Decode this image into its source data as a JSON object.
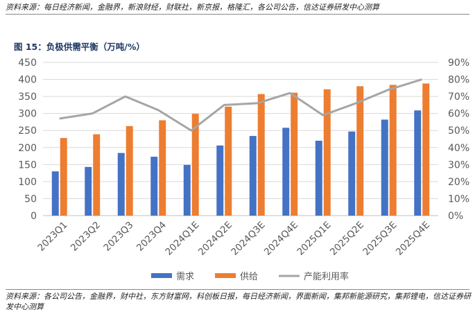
{
  "header": {
    "source_top": "资料来源：每日经济新闻，金融界，新浪财经，财联社，新京报，格隆汇，各公司公告，信达证券研发中心测算",
    "figure_title": "图 15：负极供需平衡（万吨/%）"
  },
  "footer": {
    "source_bottom": "资料来源：各公司公告，金融界，财中社，东方财富网，科创板日报，每日经济新闻，界面新闻，集邦新能源研究，集邦锂电，信达证券研发中心测算"
  },
  "chart_data": {
    "type": "bar",
    "categories": [
      "2023Q1",
      "2023Q2",
      "2023Q3",
      "2023Q4",
      "2024Q1E",
      "2024Q2E",
      "2024Q3E",
      "2024Q4E",
      "2025Q1E",
      "2025Q2E",
      "2025Q3E",
      "2025Q4E"
    ],
    "series": [
      {
        "name": "需求",
        "type": "bar",
        "axis": "left",
        "color": "#4472c4",
        "values": [
          130,
          143,
          184,
          173,
          149,
          206,
          234,
          258,
          220,
          247,
          282,
          309
        ]
      },
      {
        "name": "供给",
        "type": "bar",
        "axis": "left",
        "color": "#ed7d31",
        "values": [
          228,
          239,
          263,
          280,
          299,
          320,
          357,
          361,
          371,
          380,
          384,
          388
        ]
      },
      {
        "name": "产能利用率",
        "type": "line",
        "axis": "right",
        "color": "#a5a5a5",
        "values": [
          57,
          60,
          70,
          62,
          50,
          65,
          66,
          72,
          59,
          66,
          74,
          80
        ]
      }
    ],
    "left_axis": {
      "min": 0,
      "max": 450,
      "step": 50,
      "ticks": [
        "0",
        "50",
        "100",
        "150",
        "200",
        "250",
        "300",
        "350",
        "400",
        "450"
      ]
    },
    "right_axis": {
      "min": 0,
      "max": 90,
      "step": 10,
      "ticks": [
        "0%",
        "10%",
        "20%",
        "30%",
        "40%",
        "50%",
        "60%",
        "70%",
        "80%",
        "90%"
      ]
    },
    "grid": true,
    "legend_position": "bottom"
  }
}
